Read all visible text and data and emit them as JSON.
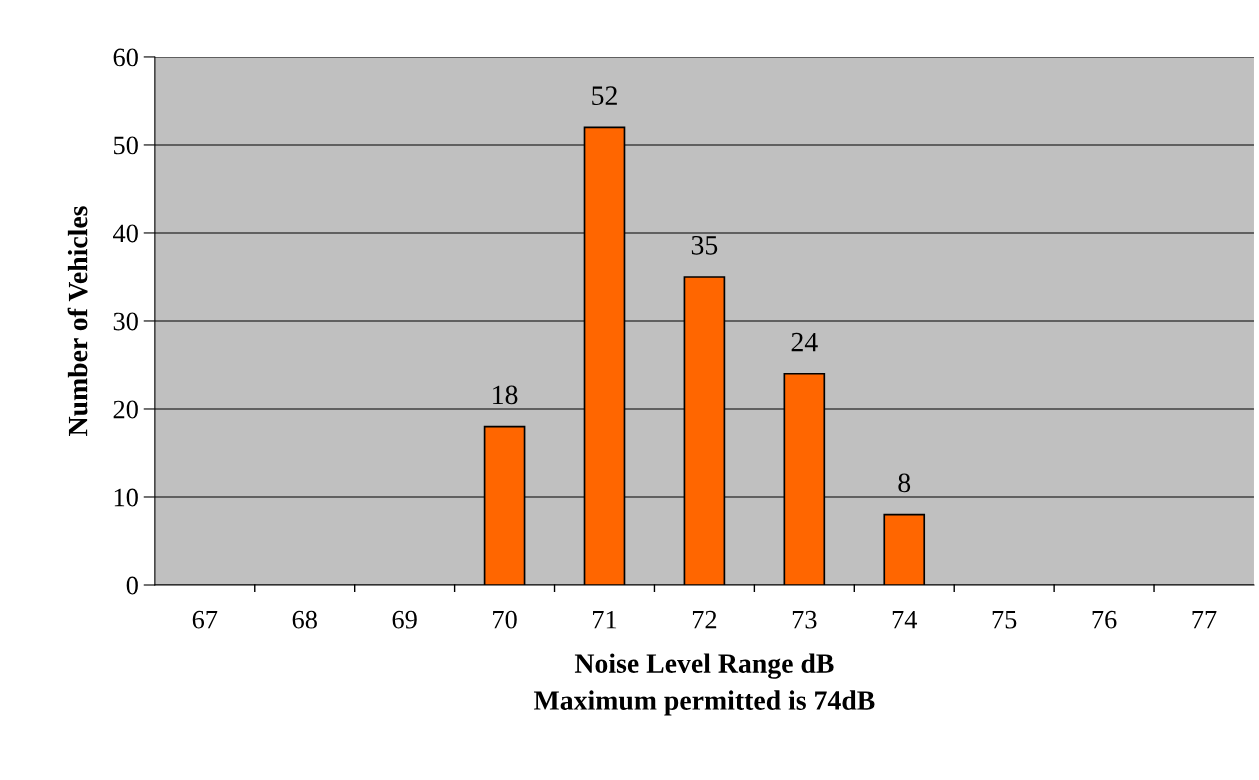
{
  "chart_data": {
    "type": "bar",
    "xlabel": "Noise Level Range dB\nMaximum permitted is 74dB",
    "ylabel": "Number of Vehicles",
    "categories": [
      "67",
      "68",
      "69",
      "70",
      "71",
      "72",
      "73",
      "74",
      "75",
      "76",
      "77"
    ],
    "values": [
      null,
      null,
      null,
      18,
      52,
      35,
      24,
      8,
      null,
      null,
      null
    ],
    "value_labels": [
      null,
      null,
      null,
      "18",
      "52",
      "35",
      "24",
      "8",
      null,
      null,
      null
    ],
    "color": "#ff6600",
    "ylim": [
      0,
      60
    ],
    "yticks": [
      0,
      10,
      20,
      30,
      40,
      50,
      60
    ],
    "grid": "y"
  }
}
